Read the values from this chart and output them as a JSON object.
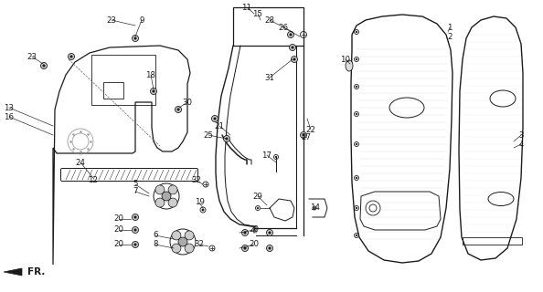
{
  "bg_color": "#ffffff",
  "lc": "#1a1a1a",
  "lw": 0.9,
  "thin": 0.5,
  "thick": 1.2
}
